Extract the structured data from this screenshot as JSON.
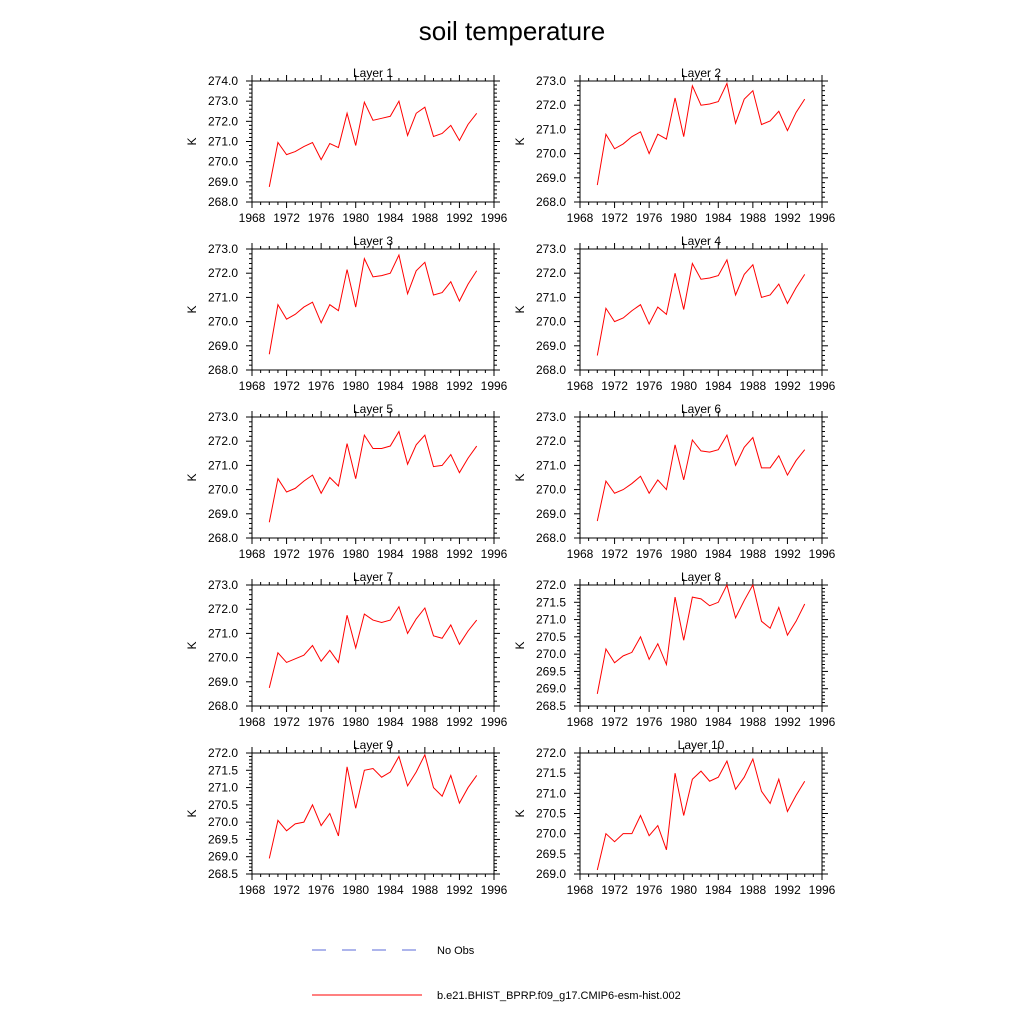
{
  "figure_title": "soil temperature",
  "x_axis_ticks": [
    "1968",
    "1972",
    "1976",
    "1980",
    "1984",
    "1988",
    "1992",
    "1996"
  ],
  "legend": [
    {
      "label": "No Obs",
      "color": "#5b6bd8",
      "style": "dashed"
    },
    {
      "label": "b.e21.BHIST_BPRP.f09_g17.CMIP6-esm-hist.002",
      "color": "#ff0000",
      "style": "solid"
    }
  ],
  "chart_data": [
    {
      "type": "line",
      "title": "Layer 1",
      "ylabel": "K",
      "xlim": [
        1968,
        1996
      ],
      "ylim": [
        268.0,
        274.0
      ],
      "yticks": [
        "268.0",
        "269.0",
        "270.0",
        "271.0",
        "272.0",
        "273.0",
        "274.0"
      ],
      "series": [
        {
          "name": "b.e21.BHIST_BPRP.f09_g17.CMIP6-esm-hist.002",
          "color": "#ff0000",
          "x": [
            1970,
            1971,
            1972,
            1973,
            1974,
            1975,
            1976,
            1977,
            1978,
            1979,
            1980,
            1981,
            1982,
            1983,
            1984,
            1985,
            1986,
            1987,
            1988,
            1989,
            1990,
            1991,
            1992,
            1993,
            1994
          ],
          "y": [
            268.75,
            270.95,
            270.35,
            270.5,
            270.75,
            270.95,
            270.1,
            270.9,
            270.7,
            272.4,
            270.8,
            272.95,
            272.05,
            272.15,
            272.25,
            273.0,
            271.3,
            272.4,
            272.7,
            271.25,
            271.4,
            271.8,
            271.05,
            271.85,
            272.4
          ]
        }
      ]
    },
    {
      "type": "line",
      "title": "Layer 2",
      "ylabel": "K",
      "xlim": [
        1968,
        1996
      ],
      "ylim": [
        268.0,
        273.0
      ],
      "yticks": [
        "268.0",
        "269.0",
        "270.0",
        "271.0",
        "272.0",
        "273.0"
      ],
      "series": [
        {
          "name": "b.e21.BHIST_BPRP.f09_g17.CMIP6-esm-hist.002",
          "color": "#ff0000",
          "x": [
            1970,
            1971,
            1972,
            1973,
            1974,
            1975,
            1976,
            1977,
            1978,
            1979,
            1980,
            1981,
            1982,
            1983,
            1984,
            1985,
            1986,
            1987,
            1988,
            1989,
            1990,
            1991,
            1992,
            1993,
            1994
          ],
          "y": [
            268.7,
            270.8,
            270.2,
            270.4,
            270.7,
            270.9,
            270.0,
            270.8,
            270.6,
            272.3,
            270.7,
            272.8,
            272.0,
            272.05,
            272.15,
            272.9,
            271.25,
            272.25,
            272.6,
            271.2,
            271.35,
            271.75,
            270.95,
            271.7,
            272.25
          ]
        }
      ]
    },
    {
      "type": "line",
      "title": "Layer 3",
      "ylabel": "K",
      "xlim": [
        1968,
        1996
      ],
      "ylim": [
        268.0,
        273.0
      ],
      "yticks": [
        "268.0",
        "269.0",
        "270.0",
        "271.0",
        "272.0",
        "273.0"
      ],
      "series": [
        {
          "name": "b.e21.BHIST_BPRP.f09_g17.CMIP6-esm-hist.002",
          "color": "#ff0000",
          "x": [
            1970,
            1971,
            1972,
            1973,
            1974,
            1975,
            1976,
            1977,
            1978,
            1979,
            1980,
            1981,
            1982,
            1983,
            1984,
            1985,
            1986,
            1987,
            1988,
            1989,
            1990,
            1991,
            1992,
            1993,
            1994
          ],
          "y": [
            268.65,
            270.7,
            270.1,
            270.3,
            270.6,
            270.8,
            269.95,
            270.7,
            270.45,
            272.15,
            270.6,
            272.6,
            271.85,
            271.9,
            272.0,
            272.75,
            271.15,
            272.1,
            272.45,
            271.1,
            271.2,
            271.65,
            270.85,
            271.55,
            272.1
          ]
        }
      ]
    },
    {
      "type": "line",
      "title": "Layer 4",
      "ylabel": "K",
      "xlim": [
        1968,
        1996
      ],
      "ylim": [
        268.0,
        273.0
      ],
      "yticks": [
        "268.0",
        "269.0",
        "270.0",
        "271.0",
        "272.0",
        "273.0"
      ],
      "series": [
        {
          "name": "b.e21.BHIST_BPRP.f09_g17.CMIP6-esm-hist.002",
          "color": "#ff0000",
          "x": [
            1970,
            1971,
            1972,
            1973,
            1974,
            1975,
            1976,
            1977,
            1978,
            1979,
            1980,
            1981,
            1982,
            1983,
            1984,
            1985,
            1986,
            1987,
            1988,
            1989,
            1990,
            1991,
            1992,
            1993,
            1994
          ],
          "y": [
            268.6,
            270.55,
            270.0,
            270.15,
            270.45,
            270.7,
            269.9,
            270.6,
            270.3,
            272.0,
            270.5,
            272.4,
            271.75,
            271.8,
            271.9,
            272.55,
            271.1,
            271.95,
            272.35,
            271.0,
            271.1,
            271.55,
            270.75,
            271.4,
            271.95
          ]
        }
      ]
    },
    {
      "type": "line",
      "title": "Layer 5",
      "ylabel": "K",
      "xlim": [
        1968,
        1996
      ],
      "ylim": [
        268.0,
        273.0
      ],
      "yticks": [
        "268.0",
        "269.0",
        "270.0",
        "271.0",
        "272.0",
        "273.0"
      ],
      "series": [
        {
          "name": "b.e21.BHIST_BPRP.f09_g17.CMIP6-esm-hist.002",
          "color": "#ff0000",
          "x": [
            1970,
            1971,
            1972,
            1973,
            1974,
            1975,
            1976,
            1977,
            1978,
            1979,
            1980,
            1981,
            1982,
            1983,
            1984,
            1985,
            1986,
            1987,
            1988,
            1989,
            1990,
            1991,
            1992,
            1993,
            1994
          ],
          "y": [
            268.65,
            270.45,
            269.9,
            270.05,
            270.35,
            270.6,
            269.85,
            270.5,
            270.15,
            271.9,
            270.45,
            272.25,
            271.7,
            271.7,
            271.8,
            272.4,
            271.05,
            271.85,
            272.25,
            270.95,
            271.0,
            271.45,
            270.7,
            271.3,
            271.8
          ]
        }
      ]
    },
    {
      "type": "line",
      "title": "Layer 6",
      "ylabel": "K",
      "xlim": [
        1968,
        1996
      ],
      "ylim": [
        268.0,
        273.0
      ],
      "yticks": [
        "268.0",
        "269.0",
        "270.0",
        "271.0",
        "272.0",
        "273.0"
      ],
      "series": [
        {
          "name": "b.e21.BHIST_BPRP.f09_g17.CMIP6-esm-hist.002",
          "color": "#ff0000",
          "x": [
            1970,
            1971,
            1972,
            1973,
            1974,
            1975,
            1976,
            1977,
            1978,
            1979,
            1980,
            1981,
            1982,
            1983,
            1984,
            1985,
            1986,
            1987,
            1988,
            1989,
            1990,
            1991,
            1992,
            1993,
            1994
          ],
          "y": [
            268.7,
            270.35,
            269.85,
            270.0,
            270.25,
            270.55,
            269.85,
            270.4,
            270.0,
            271.85,
            270.4,
            272.05,
            271.6,
            271.55,
            271.65,
            272.25,
            271.0,
            271.75,
            272.15,
            270.9,
            270.9,
            271.4,
            270.6,
            271.2,
            271.65
          ]
        }
      ]
    },
    {
      "type": "line",
      "title": "Layer 7",
      "ylabel": "K",
      "xlim": [
        1968,
        1996
      ],
      "ylim": [
        268.0,
        273.0
      ],
      "yticks": [
        "268.0",
        "269.0",
        "270.0",
        "271.0",
        "272.0",
        "273.0"
      ],
      "series": [
        {
          "name": "b.e21.BHIST_BPRP.f09_g17.CMIP6-esm-hist.002",
          "color": "#ff0000",
          "x": [
            1970,
            1971,
            1972,
            1973,
            1974,
            1975,
            1976,
            1977,
            1978,
            1979,
            1980,
            1981,
            1982,
            1983,
            1984,
            1985,
            1986,
            1987,
            1988,
            1989,
            1990,
            1991,
            1992,
            1993,
            1994
          ],
          "y": [
            268.75,
            270.2,
            269.8,
            269.95,
            270.1,
            270.5,
            269.85,
            270.3,
            269.8,
            271.75,
            270.4,
            271.8,
            271.55,
            271.45,
            271.55,
            272.1,
            271.0,
            271.6,
            272.05,
            270.9,
            270.8,
            271.35,
            270.55,
            271.1,
            271.55
          ]
        }
      ]
    },
    {
      "type": "line",
      "title": "Layer 8",
      "ylabel": "K",
      "xlim": [
        1968,
        1996
      ],
      "ylim": [
        268.5,
        272.0
      ],
      "yticks": [
        "268.5",
        "269.0",
        "269.5",
        "270.0",
        "270.5",
        "271.0",
        "271.5",
        "272.0"
      ],
      "series": [
        {
          "name": "b.e21.BHIST_BPRP.f09_g17.CMIP6-esm-hist.002",
          "color": "#ff0000",
          "x": [
            1970,
            1971,
            1972,
            1973,
            1974,
            1975,
            1976,
            1977,
            1978,
            1979,
            1980,
            1981,
            1982,
            1983,
            1984,
            1985,
            1986,
            1987,
            1988,
            1989,
            1990,
            1991,
            1992,
            1993,
            1994
          ],
          "y": [
            268.85,
            270.15,
            269.75,
            269.95,
            270.05,
            270.5,
            269.85,
            270.3,
            269.7,
            271.65,
            270.4,
            271.65,
            271.6,
            271.4,
            271.5,
            272.0,
            271.05,
            271.55,
            272.0,
            270.95,
            270.75,
            271.35,
            270.55,
            270.95,
            271.45
          ]
        }
      ]
    },
    {
      "type": "line",
      "title": "Layer 9",
      "ylabel": "K",
      "xlim": [
        1968,
        1996
      ],
      "ylim": [
        268.5,
        272.0
      ],
      "yticks": [
        "268.5",
        "269.0",
        "269.5",
        "270.0",
        "270.5",
        "271.0",
        "271.5",
        "272.0"
      ],
      "series": [
        {
          "name": "b.e21.BHIST_BPRP.f09_g17.CMIP6-esm-hist.002",
          "color": "#ff0000",
          "x": [
            1970,
            1971,
            1972,
            1973,
            1974,
            1975,
            1976,
            1977,
            1978,
            1979,
            1980,
            1981,
            1982,
            1983,
            1984,
            1985,
            1986,
            1987,
            1988,
            1989,
            1990,
            1991,
            1992,
            1993,
            1994
          ],
          "y": [
            268.95,
            270.05,
            269.75,
            269.95,
            270.0,
            270.5,
            269.9,
            270.25,
            269.6,
            271.6,
            270.4,
            271.5,
            271.55,
            271.3,
            271.45,
            271.9,
            271.05,
            271.45,
            271.95,
            271.0,
            270.75,
            271.35,
            270.55,
            271.0,
            271.35
          ]
        }
      ]
    },
    {
      "type": "line",
      "title": "Layer 10",
      "ylabel": "K",
      "xlim": [
        1968,
        1996
      ],
      "ylim": [
        269.0,
        272.0
      ],
      "yticks": [
        "269.0",
        "269.5",
        "270.0",
        "270.5",
        "271.0",
        "271.5",
        "272.0"
      ],
      "series": [
        {
          "name": "b.e21.BHIST_BPRP.f09_g17.CMIP6-esm-hist.002",
          "color": "#ff0000",
          "x": [
            1970,
            1971,
            1972,
            1973,
            1974,
            1975,
            1976,
            1977,
            1978,
            1979,
            1980,
            1981,
            1982,
            1983,
            1984,
            1985,
            1986,
            1987,
            1988,
            1989,
            1990,
            1991,
            1992,
            1993,
            1994
          ],
          "y": [
            269.1,
            270.0,
            269.8,
            270.0,
            270.0,
            270.45,
            269.95,
            270.2,
            269.6,
            271.5,
            270.45,
            271.35,
            271.55,
            271.3,
            271.4,
            271.8,
            271.1,
            271.4,
            271.85,
            271.05,
            270.75,
            271.35,
            270.55,
            270.95,
            271.3
          ]
        }
      ]
    }
  ]
}
